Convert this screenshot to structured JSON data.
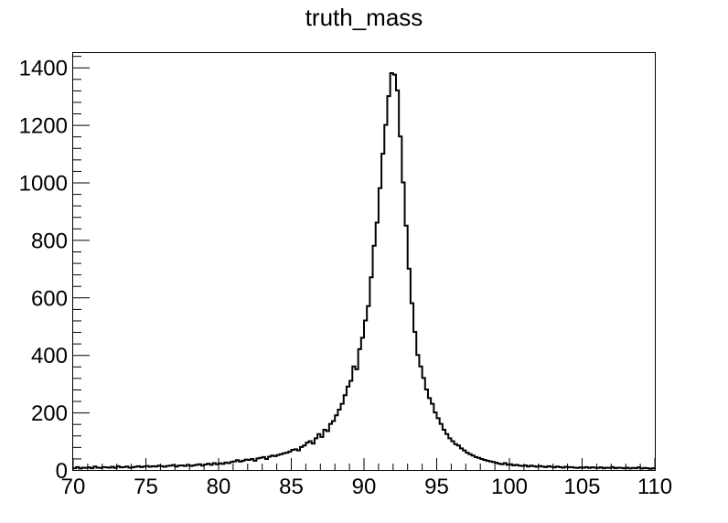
{
  "chart_data": {
    "type": "histogram",
    "title": "truth_mass",
    "xlabel": "",
    "ylabel": "",
    "xlim": [
      70,
      110
    ],
    "ylim": [
      0,
      1450
    ],
    "grid": false,
    "x_ticks": [
      "70",
      "75",
      "80",
      "85",
      "90",
      "95",
      "100",
      "105",
      "110"
    ],
    "y_ticks": [
      "0",
      "200",
      "400",
      "600",
      "800",
      "1000",
      "1200",
      "1400"
    ],
    "bin_width": 0.2,
    "series": [
      {
        "values": [
          6,
          10,
          5,
          8,
          7,
          9,
          6,
          12,
          8,
          7,
          10,
          9,
          8,
          11,
          7,
          13,
          9,
          10,
          12,
          8,
          9,
          11,
          13,
          10,
          12,
          14,
          11,
          13,
          12,
          15,
          13,
          11,
          14,
          15,
          17,
          12,
          15,
          16,
          14,
          18,
          14,
          16,
          18,
          20,
          15,
          19,
          22,
          18,
          24,
          20,
          23,
          21,
          26,
          24,
          28,
          30,
          34,
          29,
          32,
          36,
          35,
          38,
          32,
          40,
          42,
          45,
          38,
          46,
          50,
          48,
          52,
          55,
          58,
          60,
          64,
          70,
          72,
          68,
          80,
          85,
          95,
          100,
          92,
          110,
          125,
          115,
          140,
          135,
          160,
          170,
          190,
          210,
          230,
          260,
          290,
          310,
          360,
          350,
          420,
          460,
          520,
          570,
          670,
          780,
          860,
          980,
          1100,
          1200,
          1300,
          1380,
          1375,
          1320,
          1160,
          1000,
          850,
          700,
          580,
          480,
          400,
          360,
          320,
          280,
          250,
          230,
          200,
          180,
          160,
          140,
          125,
          110,
          100,
          90,
          85,
          75,
          68,
          60,
          55,
          50,
          45,
          42,
          38,
          35,
          32,
          30,
          28,
          25,
          22,
          20,
          24,
          18,
          20,
          16,
          18,
          15,
          14,
          16,
          12,
          15,
          13,
          11,
          14,
          12,
          10,
          13,
          11,
          9,
          12,
          10,
          8,
          11,
          9,
          10,
          8,
          7,
          9,
          8,
          10,
          7,
          9,
          8,
          7,
          9,
          6,
          8,
          7,
          10,
          6,
          8,
          7,
          6,
          8,
          5,
          7,
          6,
          9,
          5,
          7,
          6,
          4,
          6
        ]
      }
    ]
  }
}
